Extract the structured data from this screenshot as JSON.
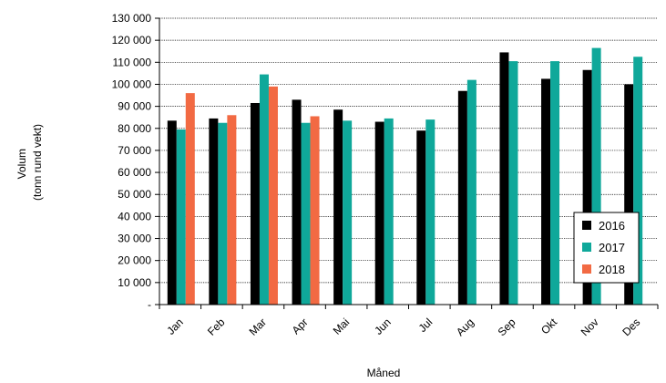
{
  "chart_data": {
    "type": "bar",
    "title": "",
    "xlabel": "Måned",
    "ylabel": "Volum",
    "ylabel_sub": "(tonn rund vekt)",
    "categories": [
      "Jan",
      "Feb",
      "Mar",
      "Apr",
      "Mai",
      "Jun",
      "Jul",
      "Aug",
      "Sep",
      "Okt",
      "Nov",
      "Des"
    ],
    "ylim": [
      0,
      130000
    ],
    "yticks": [
      0,
      10000,
      20000,
      30000,
      40000,
      50000,
      60000,
      70000,
      80000,
      90000,
      100000,
      110000,
      120000,
      130000
    ],
    "ytick_labels": [
      "-",
      "10 000",
      "20 000",
      "30 000",
      "40 000",
      "50 000",
      "60 000",
      "70 000",
      "80 000",
      "90 000",
      "100 000",
      "110 000",
      "120 000",
      "130 000"
    ],
    "grid": true,
    "legend_position": "bottom-right",
    "series": [
      {
        "name": "2016",
        "color": "#000000",
        "values": [
          83500,
          84500,
          91500,
          93000,
          88500,
          83000,
          79000,
          97000,
          114500,
          102500,
          106500,
          100000
        ]
      },
      {
        "name": "2017",
        "color": "#0fa89a",
        "values": [
          79500,
          82500,
          104500,
          82500,
          83500,
          84500,
          84000,
          102000,
          110500,
          110500,
          116500,
          112500
        ]
      },
      {
        "name": "2018",
        "color": "#f26a43",
        "values": [
          96000,
          86000,
          99000,
          85500,
          null,
          null,
          null,
          null,
          null,
          null,
          null,
          null
        ]
      }
    ]
  }
}
